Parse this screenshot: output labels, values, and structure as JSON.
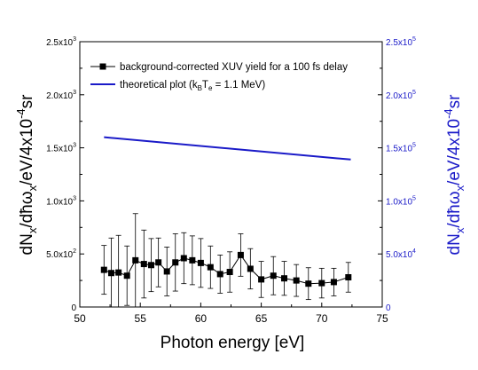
{
  "chart_data": {
    "type": "scatter",
    "x_axis": {
      "label": "Photon energy [eV]",
      "range": [
        50,
        75
      ],
      "ticks": [
        {
          "value": 50,
          "label": "50"
        },
        {
          "value": 55,
          "label": "55"
        },
        {
          "value": 60,
          "label": "60"
        },
        {
          "value": 65,
          "label": "65"
        },
        {
          "value": 70,
          "label": "70"
        },
        {
          "value": 75,
          "label": "75"
        }
      ]
    },
    "y_axis_left": {
      "label": "dN_x/dħω_x/eV/4x10^-4sr",
      "label_main": "dN",
      "label_sub1": "x",
      "label_mid": "/dħω",
      "label_sub2": "x",
      "label_end": "/eV/4x10",
      "label_sup": "-4",
      "label_tail": "sr",
      "range": [
        0,
        2500
      ],
      "ticks": [
        {
          "value": 0,
          "mantissa": "0",
          "exp": ""
        },
        {
          "value": 500,
          "mantissa": "5.0x10",
          "exp": "2"
        },
        {
          "value": 1000,
          "mantissa": "1.0x10",
          "exp": "3"
        },
        {
          "value": 1500,
          "mantissa": "1.5x10",
          "exp": "3"
        },
        {
          "value": 2000,
          "mantissa": "2.0x10",
          "exp": "3"
        },
        {
          "value": 2500,
          "mantissa": "2.5x10",
          "exp": "3"
        }
      ]
    },
    "y_axis_right": {
      "label": "dN_x/dħω_x/eV/4x10^-4sr",
      "label_main": "dN",
      "label_sub1": "x",
      "label_mid": "/dħω",
      "label_sub2": "x",
      "label_end": "/eV/4x10",
      "label_sup": "-4",
      "label_tail": "sr",
      "range": [
        0,
        250000
      ],
      "color": "#1a1ac8",
      "ticks": [
        {
          "value": 0,
          "mantissa": "0",
          "exp": ""
        },
        {
          "value": 50000,
          "mantissa": "5.0x10",
          "exp": "4"
        },
        {
          "value": 100000,
          "mantissa": "1.0x10",
          "exp": "5"
        },
        {
          "value": 150000,
          "mantissa": "1.5x10",
          "exp": "5"
        },
        {
          "value": 200000,
          "mantissa": "2.0x10",
          "exp": "5"
        },
        {
          "value": 250000,
          "mantissa": "2.5x10",
          "exp": "5"
        }
      ]
    },
    "legend": {
      "placement": "top-left",
      "entries": [
        {
          "label": "background-corrected XUV yield for a 100 fs delay"
        },
        {
          "label_pre": "theoretical plot (k",
          "sub1": "B",
          "label_mid": "T",
          "sub2": "e",
          "label_post": " = 1.1 MeV)"
        }
      ]
    },
    "series": [
      {
        "name": "background-corrected XUV yield for a 100 fs delay",
        "axis": "left",
        "color": "#000000",
        "marker": "square",
        "points": [
          {
            "x": 52.0,
            "y": 350,
            "err": 230
          },
          {
            "x": 52.6,
            "y": 320,
            "err": 330
          },
          {
            "x": 53.2,
            "y": 325,
            "err": 350
          },
          {
            "x": 53.9,
            "y": 295,
            "err": 280
          },
          {
            "x": 54.6,
            "y": 440,
            "err": 440
          },
          {
            "x": 55.3,
            "y": 405,
            "err": 320
          },
          {
            "x": 55.9,
            "y": 395,
            "err": 250
          },
          {
            "x": 56.5,
            "y": 420,
            "err": 230
          },
          {
            "x": 57.2,
            "y": 335,
            "err": 230
          },
          {
            "x": 57.9,
            "y": 420,
            "err": 270
          },
          {
            "x": 58.6,
            "y": 460,
            "err": 240
          },
          {
            "x": 59.3,
            "y": 440,
            "err": 230
          },
          {
            "x": 60.0,
            "y": 415,
            "err": 230
          },
          {
            "x": 60.8,
            "y": 375,
            "err": 200
          },
          {
            "x": 61.6,
            "y": 310,
            "err": 180
          },
          {
            "x": 62.4,
            "y": 330,
            "err": 190
          },
          {
            "x": 63.3,
            "y": 490,
            "err": 200
          },
          {
            "x": 64.1,
            "y": 360,
            "err": 190
          },
          {
            "x": 65.0,
            "y": 260,
            "err": 170
          },
          {
            "x": 66.0,
            "y": 295,
            "err": 180
          },
          {
            "x": 66.9,
            "y": 270,
            "err": 160
          },
          {
            "x": 67.9,
            "y": 250,
            "err": 150
          },
          {
            "x": 68.9,
            "y": 220,
            "err": 150
          },
          {
            "x": 70.0,
            "y": 225,
            "err": 140
          },
          {
            "x": 71.0,
            "y": 235,
            "err": 130
          },
          {
            "x": 72.2,
            "y": 280,
            "err": 140
          }
        ]
      },
      {
        "name": "theoretical plot (kBTe = 1.1 MeV)",
        "axis": "right",
        "color": "#1a1ac8",
        "marker": "none",
        "points": [
          {
            "x": 52.0,
            "y": 160000
          },
          {
            "x": 72.4,
            "y": 139000
          }
        ]
      }
    ]
  }
}
